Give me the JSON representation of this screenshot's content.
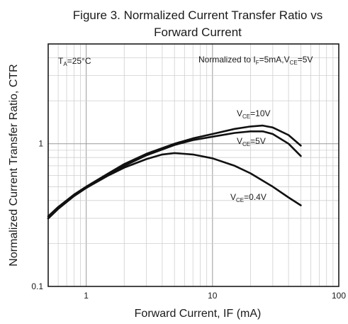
{
  "chart_data": {
    "type": "line",
    "title_line1": "Figure 3. Normalized Current Transfer Ratio vs",
    "title_line2": "Forward Current",
    "xlabel": "Forward Current, IF (mA)",
    "ylabel": "Normalized Current Transfer Ratio, CTR",
    "x_scale": "log",
    "y_scale": "log",
    "xlim": [
      0.5,
      100
    ],
    "ylim": [
      0.1,
      5
    ],
    "x_ticks": [
      {
        "value": 1,
        "label": "1"
      },
      {
        "value": 10,
        "label": "10"
      },
      {
        "value": 100,
        "label": "100"
      }
    ],
    "y_ticks": [
      {
        "value": 0.1,
        "label": "0.1"
      },
      {
        "value": 1,
        "label": "1"
      }
    ],
    "grid": true,
    "annotations": {
      "temperature": {
        "base": "T",
        "sub": "A",
        "rest": "=25°C"
      },
      "normalization": {
        "prefix": "Normalized to I",
        "sub1": "F",
        "mid": "=5mA,V",
        "sub2": "CE",
        "rest": "=5V"
      }
    },
    "series": [
      {
        "label_base": "V",
        "label_sub": "CE",
        "label_rest": "=10V",
        "x": [
          0.5,
          0.6,
          0.8,
          1,
          1.5,
          2,
          3,
          5,
          7,
          10,
          15,
          20,
          25,
          30,
          40,
          50
        ],
        "y": [
          0.31,
          0.36,
          0.44,
          0.5,
          0.62,
          0.72,
          0.85,
          1.0,
          1.09,
          1.17,
          1.27,
          1.32,
          1.34,
          1.3,
          1.15,
          0.97
        ]
      },
      {
        "label_base": "V",
        "label_sub": "CE",
        "label_rest": "=5V",
        "x": [
          0.5,
          0.6,
          0.8,
          1,
          1.5,
          2,
          3,
          5,
          7,
          10,
          15,
          20,
          25,
          30,
          40,
          50
        ],
        "y": [
          0.3,
          0.35,
          0.43,
          0.49,
          0.61,
          0.7,
          0.83,
          0.98,
          1.06,
          1.12,
          1.19,
          1.22,
          1.22,
          1.17,
          1.0,
          0.82
        ]
      },
      {
        "label_base": "V",
        "label_sub": "CE",
        "label_rest": "=0.4V",
        "x": [
          0.5,
          0.6,
          0.8,
          1,
          1.5,
          2,
          3,
          4,
          5,
          7,
          10,
          15,
          20,
          30,
          40,
          50
        ],
        "y": [
          0.3,
          0.35,
          0.43,
          0.49,
          0.6,
          0.68,
          0.78,
          0.84,
          0.86,
          0.84,
          0.79,
          0.7,
          0.62,
          0.5,
          0.42,
          0.37
        ]
      }
    ]
  }
}
